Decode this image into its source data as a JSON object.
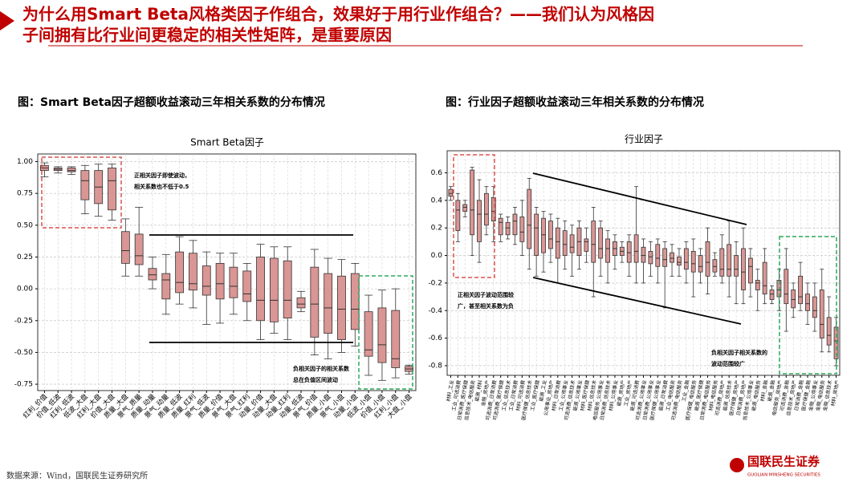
{
  "header": {
    "title_lines": [
      "为什么用Smart Beta风格类因子作组合，效果好于用行业作组合？——我们认为风格因",
      "子间拥有比行业间更稳定的相关性矩阵，是重要原因"
    ]
  },
  "captions": [
    "图：Smart Beta因子超额收益滚动三年相关系数的分布情况",
    "图：行业因子超额收益滚动三年相关系数的分布情况"
  ],
  "chart_data": [
    {
      "type": "box",
      "title": "Smart Beta因子",
      "categories": [
        "红利_价值",
        "价值_低波",
        "红利_低波",
        "低波_大盘",
        "红利_大盘",
        "价值_大盘",
        "质量_大盘",
        "景气_质量",
        "质量_动量",
        "景气_动量",
        "质量_低波",
        "质量_红利",
        "景气_低波",
        "质量_价值",
        "景气_大盘",
        "景气_红利",
        "动量_价值",
        "动量_大盘",
        "动量_红利",
        "动量_低波",
        "景气_价值",
        "质量_小盘",
        "景气_小盘",
        "动量_小盘",
        "低波_小盘",
        "价值_小盘",
        "红利_小盘",
        "大盘_小盘"
      ],
      "whisker_low": [
        0.88,
        0.91,
        0.9,
        0.59,
        0.57,
        0.54,
        0.1,
        0.1,
        0.0,
        -0.2,
        -0.12,
        -0.15,
        -0.28,
        -0.27,
        -0.2,
        -0.25,
        -0.4,
        -0.35,
        -0.4,
        -0.18,
        -0.52,
        -0.55,
        -0.5,
        -0.45,
        -0.68,
        -0.72,
        -0.7,
        -0.67
      ],
      "q1": [
        0.93,
        0.93,
        0.92,
        0.7,
        0.67,
        0.62,
        0.2,
        0.19,
        0.07,
        -0.08,
        -0.03,
        -0.01,
        -0.05,
        -0.08,
        -0.07,
        -0.1,
        -0.25,
        -0.26,
        -0.23,
        -0.15,
        -0.38,
        -0.35,
        -0.4,
        -0.32,
        -0.53,
        -0.58,
        -0.62,
        -0.65
      ],
      "median": [
        0.95,
        0.94,
        0.93,
        0.85,
        0.8,
        0.85,
        0.3,
        0.26,
        0.11,
        0.07,
        0.05,
        0.04,
        0.02,
        0.04,
        0.02,
        -0.04,
        -0.09,
        -0.09,
        -0.09,
        -0.12,
        -0.12,
        -0.15,
        -0.16,
        -0.16,
        -0.48,
        -0.44,
        -0.55,
        -0.63
      ],
      "q3": [
        0.97,
        0.95,
        0.95,
        0.93,
        0.93,
        0.95,
        0.45,
        0.43,
        0.16,
        0.12,
        0.29,
        0.28,
        0.18,
        0.2,
        0.17,
        0.14,
        0.25,
        0.24,
        0.22,
        -0.07,
        0.17,
        0.12,
        0.1,
        0.12,
        -0.18,
        -0.15,
        -0.17,
        -0.61
      ],
      "whisker_high": [
        0.99,
        0.96,
        0.96,
        0.97,
        0.98,
        0.98,
        0.55,
        0.64,
        0.25,
        0.27,
        0.41,
        0.38,
        0.29,
        0.28,
        0.28,
        0.2,
        0.35,
        0.33,
        0.33,
        -0.02,
        0.31,
        0.24,
        0.23,
        0.2,
        -0.05,
        -0.01,
        0.0,
        -0.6
      ],
      "color": "#d99694",
      "ylim": [
        -0.8,
        1.06
      ],
      "yticks": [
        {
          "value": 1,
          "label": "1.00"
        },
        {
          "value": 0.75,
          "label": "0.75"
        },
        {
          "value": 0.5,
          "label": "0.50"
        },
        {
          "value": 0.25,
          "label": "0.25"
        },
        {
          "value": 0,
          "label": "0.00"
        },
        {
          "value": -0.25,
          "label": "-0.25"
        },
        {
          "value": -0.5,
          "label": "-0.50"
        },
        {
          "value": -0.75,
          "label": "-0.75"
        }
      ],
      "grid": true,
      "annotations": [
        [
          "正相关因子即使波动，",
          "相关系数也不低于0.5"
        ],
        [
          "负相关因子的相关系数",
          "总在负值区间波动"
        ]
      ]
    },
    {
      "type": "box",
      "title": "行业因子",
      "categories": [
        "材料_工业",
        "工业_可选消费",
        "日常消费_医疗保健",
        "信息技术_电信服务",
        "能源_材料",
        "金融_房地产",
        "可选消费_日常消费",
        "可选消费_医疗保健",
        "工业_信息技术",
        "工业_日常消费",
        "材料_可选消费",
        "医疗保健_信息技术",
        "工业_医疗保健",
        "能源_工业",
        "公用事业_房地产",
        "材料_日常消费",
        "工业_公用事业",
        "可选消费_信息技术",
        "能源_公用事业",
        "材料_医疗保健",
        "材料_信息技术",
        "电信服务_公用事业",
        "日常消费_信息技术",
        "材料_公用事业",
        "能源_房地产",
        "工业_房地产",
        "能源_可选消费",
        "可选消费_公用事业",
        "日常消费_公用事业",
        "医疗保健_公用事业",
        "能源_日常消费",
        "工业_电信服务",
        "可选消费_电信服务",
        "工业_金融",
        "医疗保健_电信服务",
        "能源_医疗保健",
        "日常消费_电信服务",
        "材料_电信服务",
        "可选消费_房地产",
        "能源_信息技术",
        "医疗保健_房地产",
        "日常消费_房地产",
        "信息技术_公用事业",
        "能源_电信服务",
        "材料_金融",
        "能源_金融",
        "电信服务_房地产",
        "可选消费_金融",
        "信息技术_房地产",
        "日常消费_金融",
        "医疗保健_金融",
        "金融_公用事业",
        "金融_电信服务",
        "金融_信息技术",
        "材料_房地产"
      ],
      "whisker_low": [
        0.4,
        0.1,
        0.28,
        0.0,
        -0.05,
        0.15,
        0.1,
        0.1,
        0.12,
        0.08,
        0.0,
        -0.1,
        -0.15,
        -0.12,
        -0.05,
        -0.2,
        -0.1,
        -0.15,
        -0.1,
        -0.05,
        -0.3,
        -0.15,
        -0.2,
        -0.1,
        -0.05,
        -0.15,
        -0.2,
        -0.2,
        -0.15,
        -0.2,
        -0.38,
        -0.15,
        -0.15,
        -0.2,
        -0.3,
        -0.2,
        -0.28,
        -0.15,
        -0.2,
        -0.3,
        -0.35,
        -0.35,
        -0.3,
        -0.4,
        -0.35,
        -0.35,
        -0.4,
        -0.55,
        -0.45,
        -0.4,
        -0.5,
        -0.55,
        -0.7,
        -0.7,
        -0.8
      ],
      "q1": [
        0.43,
        0.18,
        0.32,
        0.15,
        0.1,
        0.22,
        0.25,
        0.15,
        0.15,
        0.15,
        0.1,
        0.05,
        0.0,
        0.02,
        0.05,
        -0.02,
        0.0,
        0.02,
        0.0,
        0.03,
        -0.05,
        -0.02,
        -0.05,
        0.0,
        0.0,
        -0.05,
        -0.05,
        -0.05,
        -0.06,
        -0.08,
        -0.08,
        -0.05,
        -0.07,
        -0.1,
        -0.12,
        -0.12,
        -0.15,
        -0.12,
        -0.15,
        -0.15,
        -0.15,
        -0.25,
        -0.2,
        -0.25,
        -0.28,
        -0.32,
        -0.3,
        -0.35,
        -0.38,
        -0.35,
        -0.4,
        -0.45,
        -0.6,
        -0.65,
        -0.75
      ],
      "median": [
        0.45,
        0.33,
        0.35,
        0.33,
        0.3,
        0.3,
        0.32,
        0.24,
        0.2,
        0.25,
        0.17,
        0.22,
        0.2,
        0.15,
        0.12,
        0.1,
        0.08,
        0.06,
        0.1,
        0.1,
        0.08,
        0.05,
        0.05,
        0.05,
        0.03,
        0.02,
        0.03,
        0.0,
        -0.01,
        -0.02,
        -0.03,
        -0.02,
        -0.05,
        -0.05,
        -0.06,
        -0.08,
        -0.05,
        -0.08,
        -0.1,
        -0.1,
        -0.1,
        -0.12,
        -0.08,
        -0.2,
        -0.22,
        -0.28,
        -0.25,
        -0.28,
        -0.32,
        -0.3,
        -0.35,
        -0.4,
        -0.5,
        -0.58,
        -0.62
      ],
      "q3": [
        0.48,
        0.4,
        0.37,
        0.62,
        0.4,
        0.45,
        0.42,
        0.27,
        0.24,
        0.3,
        0.28,
        0.48,
        0.3,
        0.27,
        0.25,
        0.2,
        0.18,
        0.15,
        0.2,
        0.12,
        0.25,
        0.2,
        0.12,
        0.1,
        0.06,
        0.1,
        0.15,
        0.06,
        0.03,
        0.08,
        0.05,
        0.02,
        -0.01,
        0.05,
        0.03,
        0.0,
        0.1,
        -0.03,
        0.05,
        0.08,
        0.0,
        0.05,
        -0.02,
        -0.18,
        -0.05,
        -0.25,
        -0.18,
        -0.1,
        -0.25,
        -0.15,
        -0.28,
        -0.3,
        -0.25,
        -0.45,
        -0.52
      ],
      "whisker_high": [
        0.5,
        0.45,
        0.4,
        0.64,
        0.55,
        0.5,
        0.5,
        0.3,
        0.28,
        0.35,
        0.4,
        0.56,
        0.35,
        0.32,
        0.3,
        0.27,
        0.25,
        0.22,
        0.25,
        0.2,
        0.35,
        0.25,
        0.18,
        0.15,
        0.1,
        0.15,
        0.5,
        0.12,
        0.1,
        0.12,
        0.1,
        0.08,
        0.05,
        0.1,
        0.12,
        0.05,
        0.2,
        0.02,
        0.15,
        0.25,
        0.1,
        0.2,
        0.05,
        -0.1,
        0.05,
        -0.22,
        -0.1,
        0.05,
        -0.2,
        -0.05,
        -0.2,
        -0.2,
        -0.1,
        -0.3,
        -0.45
      ],
      "color": "#d99694",
      "ylim": [
        -0.87,
        0.76
      ],
      "yticks": [
        0.6,
        0.4,
        0.2,
        {
          "value": 0,
          "label": "0.0"
        },
        -0.2,
        -0.4,
        -0.6,
        -0.8
      ],
      "grid": true,
      "annotations": [
        [
          "正相关因子波动范围较",
          "广，甚至相关系数为负"
        ],
        [
          "负相关因子相关系数的",
          "波动范围较广"
        ]
      ]
    }
  ],
  "footer": {
    "source": "数据来源：Wind，国联民生证券研究所",
    "logo": "国联民生证券",
    "logo_en": "GUOLIAN MINSHENG SECURITIES"
  }
}
